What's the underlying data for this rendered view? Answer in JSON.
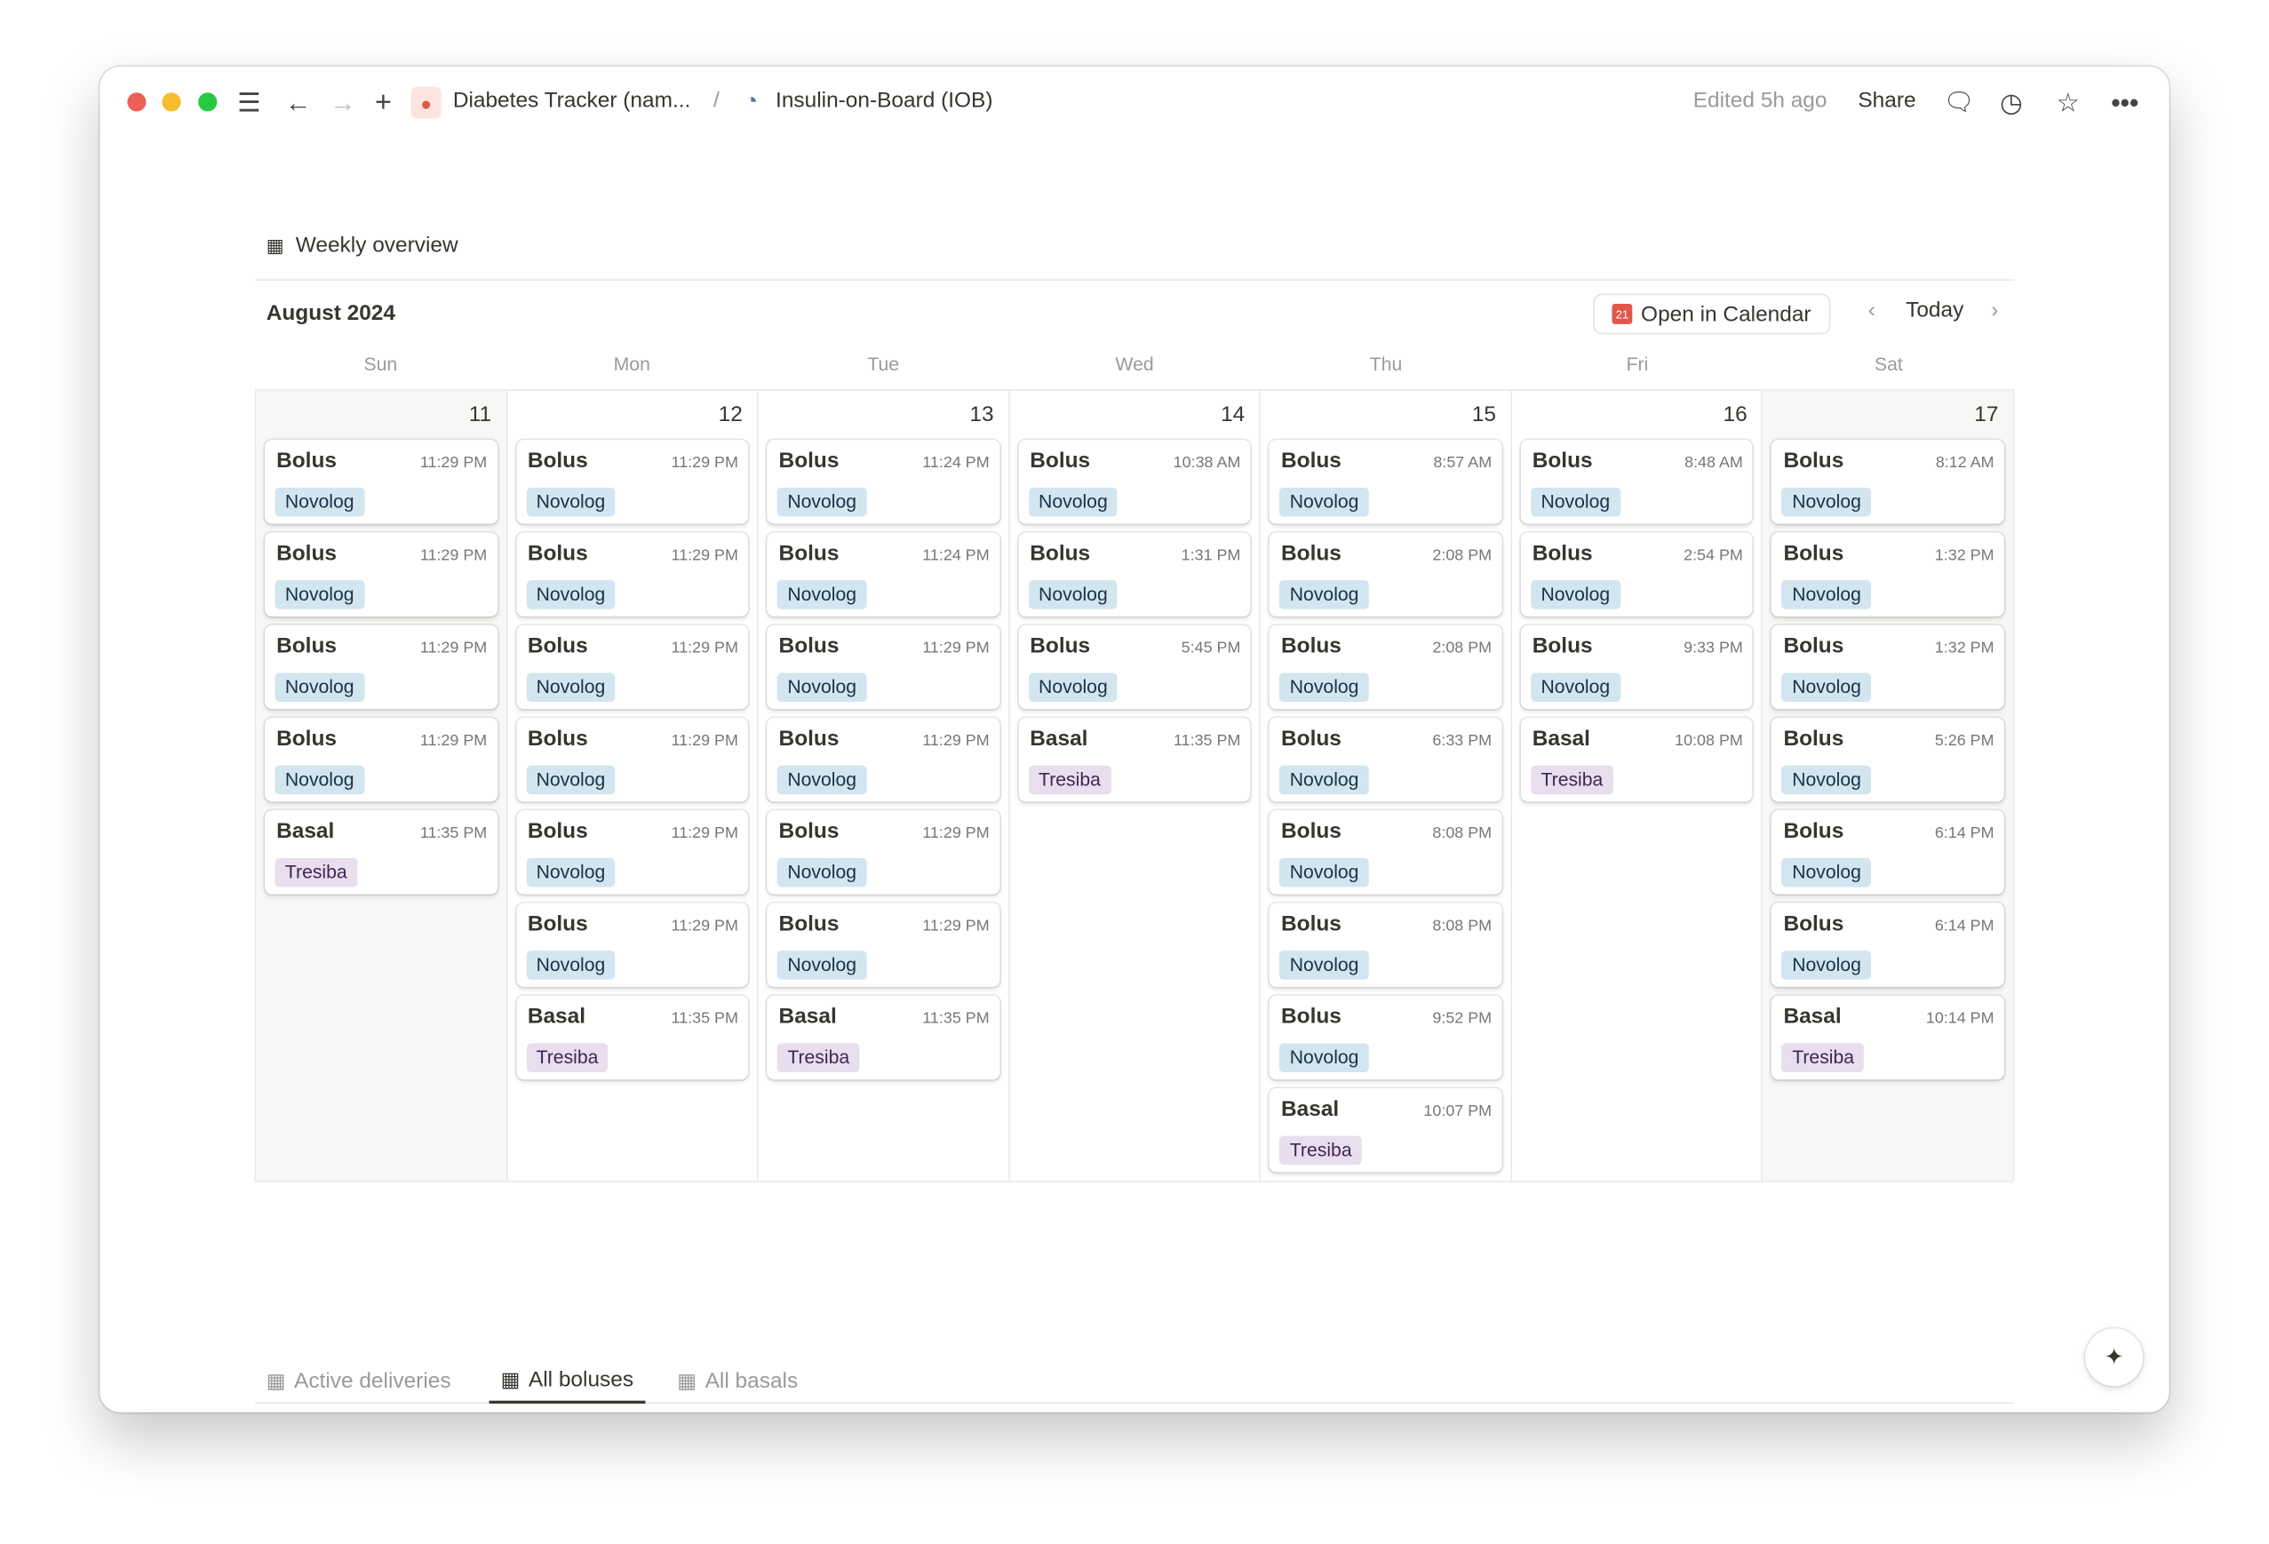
{
  "topbar": {
    "breadcrumb_parent": "Diabetes Tracker (nam...",
    "separator": "/",
    "breadcrumb_current": "Insulin-on-Board (IOB)",
    "edited": "Edited 5h ago",
    "share": "Share"
  },
  "section": {
    "title": "Weekly overview"
  },
  "calendar": {
    "month": "August 2024",
    "open_in_calendar": "Open in Calendar",
    "today": "Today",
    "cal_icon_day": "21",
    "days": [
      {
        "name": "Sun",
        "date": "11",
        "weekend": true,
        "events": [
          [
            "Bolus",
            "11:29 PM",
            "Novolog"
          ],
          [
            "Bolus",
            "11:29 PM",
            "Novolog"
          ],
          [
            "Bolus",
            "11:29 PM",
            "Novolog"
          ],
          [
            "Bolus",
            "11:29 PM",
            "Novolog"
          ],
          [
            "Basal",
            "11:35 PM",
            "Tresiba"
          ]
        ]
      },
      {
        "name": "Mon",
        "date": "12",
        "weekend": false,
        "events": [
          [
            "Bolus",
            "11:29 PM",
            "Novolog"
          ],
          [
            "Bolus",
            "11:29 PM",
            "Novolog"
          ],
          [
            "Bolus",
            "11:29 PM",
            "Novolog"
          ],
          [
            "Bolus",
            "11:29 PM",
            "Novolog"
          ],
          [
            "Bolus",
            "11:29 PM",
            "Novolog"
          ],
          [
            "Bolus",
            "11:29 PM",
            "Novolog"
          ],
          [
            "Basal",
            "11:35 PM",
            "Tresiba"
          ]
        ]
      },
      {
        "name": "Tue",
        "date": "13",
        "weekend": false,
        "events": [
          [
            "Bolus",
            "11:24 PM",
            "Novolog"
          ],
          [
            "Bolus",
            "11:24 PM",
            "Novolog"
          ],
          [
            "Bolus",
            "11:29 PM",
            "Novolog"
          ],
          [
            "Bolus",
            "11:29 PM",
            "Novolog"
          ],
          [
            "Bolus",
            "11:29 PM",
            "Novolog"
          ],
          [
            "Bolus",
            "11:29 PM",
            "Novolog"
          ],
          [
            "Basal",
            "11:35 PM",
            "Tresiba"
          ]
        ]
      },
      {
        "name": "Wed",
        "date": "14",
        "weekend": false,
        "events": [
          [
            "Bolus",
            "10:38 AM",
            "Novolog"
          ],
          [
            "Bolus",
            "1:31 PM",
            "Novolog"
          ],
          [
            "Bolus",
            "5:45 PM",
            "Novolog"
          ],
          [
            "Basal",
            "11:35 PM",
            "Tresiba"
          ]
        ]
      },
      {
        "name": "Thu",
        "date": "15",
        "weekend": false,
        "events": [
          [
            "Bolus",
            "8:57 AM",
            "Novolog"
          ],
          [
            "Bolus",
            "2:08 PM",
            "Novolog"
          ],
          [
            "Bolus",
            "2:08 PM",
            "Novolog"
          ],
          [
            "Bolus",
            "6:33 PM",
            "Novolog"
          ],
          [
            "Bolus",
            "8:08 PM",
            "Novolog"
          ],
          [
            "Bolus",
            "8:08 PM",
            "Novolog"
          ],
          [
            "Bolus",
            "9:52 PM",
            "Novolog"
          ],
          [
            "Basal",
            "10:07 PM",
            "Tresiba"
          ]
        ]
      },
      {
        "name": "Fri",
        "date": "16",
        "weekend": false,
        "events": [
          [
            "Bolus",
            "8:48 AM",
            "Novolog"
          ],
          [
            "Bolus",
            "2:54 PM",
            "Novolog"
          ],
          [
            "Bolus",
            "9:33 PM",
            "Novolog"
          ],
          [
            "Basal",
            "10:08 PM",
            "Tresiba"
          ]
        ]
      },
      {
        "name": "Sat",
        "date": "17",
        "weekend": true,
        "events": [
          [
            "Bolus",
            "8:12 AM",
            "Novolog"
          ],
          [
            "Bolus",
            "1:32 PM",
            "Novolog"
          ],
          [
            "Bolus",
            "1:32 PM",
            "Novolog"
          ],
          [
            "Bolus",
            "5:26 PM",
            "Novolog"
          ],
          [
            "Bolus",
            "6:14 PM",
            "Novolog"
          ],
          [
            "Bolus",
            "6:14 PM",
            "Novolog"
          ],
          [
            "Basal",
            "10:14 PM",
            "Tresiba"
          ]
        ]
      }
    ]
  },
  "tag_colors": {
    "Novolog": {
      "bg": "#d3e5ef",
      "fg": "#183347"
    },
    "Tresiba": {
      "bg": "#e8deee",
      "fg": "#412454"
    }
  },
  "tabs": [
    {
      "label": "Active deliveries",
      "active": false
    },
    {
      "label": "All boluses",
      "active": true
    },
    {
      "label": "All basals",
      "active": false
    }
  ],
  "colors": {
    "close": "#ed5f57",
    "minimize": "#f6bd2f",
    "maximize": "#28c840",
    "accent_red": "#e2574c"
  }
}
